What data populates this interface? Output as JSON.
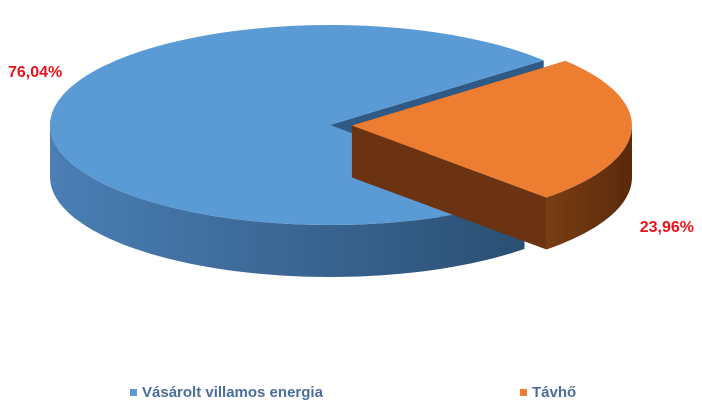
{
  "chart_data": {
    "type": "pie",
    "categories": [
      "Vásárolt villamos energia",
      "Távhő"
    ],
    "values": [
      76.04,
      23.96
    ],
    "value_labels": [
      "76,04%",
      "23,96%"
    ],
    "colors": [
      "#5b9bd5",
      "#ed7d31"
    ],
    "legend": "bottom"
  }
}
